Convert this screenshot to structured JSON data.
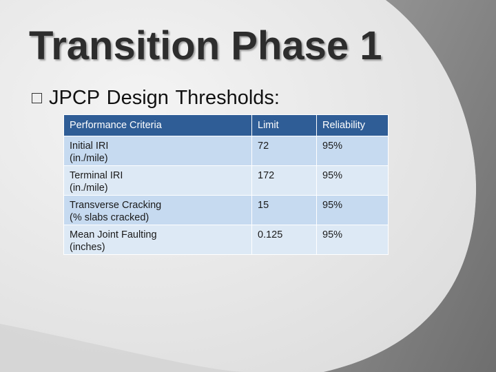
{
  "slide": {
    "title": "Transition Phase 1",
    "bullet": "JPCP Design Thresholds:"
  },
  "table": {
    "headers": [
      "Performance Criteria",
      "Limit",
      "Reliability"
    ],
    "rows": [
      {
        "criteria_line1": "Initial IRI",
        "criteria_line2": "(in./mile)",
        "limit": "72",
        "reliability": "95%"
      },
      {
        "criteria_line1": "Terminal IRI",
        "criteria_line2": "(in./mile)",
        "limit": "172",
        "reliability": "95%"
      },
      {
        "criteria_line1": "Transverse Cracking",
        "criteria_line2": "(% slabs cracked)",
        "limit": "15",
        "reliability": "95%"
      },
      {
        "criteria_line1": "Mean Joint Faulting",
        "criteria_line2": "(inches)",
        "limit": "0.125",
        "reliability": "95%"
      }
    ]
  },
  "colors": {
    "header_bg": "#2f5d96",
    "row_bg": "#c6daf0",
    "row_alt_bg": "#dde9f5",
    "background_light": "#e8e8e8",
    "background_dark": "#8a8a8a"
  }
}
